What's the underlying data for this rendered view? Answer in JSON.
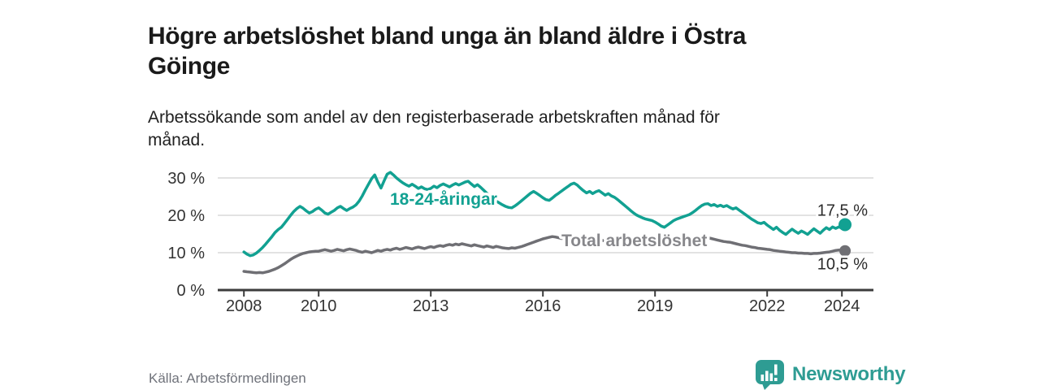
{
  "header": {
    "title": "Högre arbetslöshet bland unga än bland äldre i Östra\nGöinge",
    "subtitle": "Arbetssökande som andel av den registerbaserade arbetskraften månad för\nmånad."
  },
  "footer": {
    "source": "Källa: Arbetsförmedlingen",
    "brand": "Newsworthy"
  },
  "colors": {
    "accent_teal": "#12a192",
    "series_gray": "#6f6f74",
    "gray_label": "#87878b",
    "grid": "#d8d8d8",
    "axis": "#3c3c3c",
    "tick_text": "#333333",
    "value_label_text": "#2b2b2b",
    "logo_teal": "#2e9c93"
  },
  "chart_data": {
    "type": "line",
    "title": "Högre arbetslöshet bland unga än bland äldre i Östra Göinge",
    "subtitle": "Arbetssökande som andel av den registerbaserade arbetskraften månad för månad.",
    "xlabel": "",
    "ylabel": "",
    "x_unit": "year",
    "x_start": 2008.0,
    "x_step": 0.083333,
    "xlim": [
      2007.3,
      2024.85
    ],
    "ylim": [
      0,
      32
    ],
    "grid": "horizontal",
    "legend_position": "inline-labels",
    "x_ticks": [
      {
        "year": 2008,
        "label": "2008"
      },
      {
        "year": 2010,
        "label": "2010"
      },
      {
        "year": 2013,
        "label": "2013"
      },
      {
        "year": 2016,
        "label": "2016"
      },
      {
        "year": 2019,
        "label": "2019"
      },
      {
        "year": 2022,
        "label": "2022"
      },
      {
        "year": 2024,
        "label": "2024"
      }
    ],
    "y_ticks": [
      {
        "v": 0,
        "label": "0 %"
      },
      {
        "v": 10,
        "label": "10 %"
      },
      {
        "v": 20,
        "label": "20 %"
      },
      {
        "v": 30,
        "label": "30 %"
      }
    ],
    "series": [
      {
        "name": "18-24-åringar",
        "color": "#12a192",
        "label_color": "#12a192",
        "end_label": "17,5 %",
        "end_value": 17.5,
        "values": [
          10.2,
          9.6,
          9.2,
          9.4,
          9.9,
          10.6,
          11.4,
          12.3,
          13.3,
          14.3,
          15.4,
          16.2,
          16.8,
          17.8,
          18.9,
          20,
          21,
          21.8,
          22.4,
          21.9,
          21.2,
          20.6,
          21,
          21.6,
          22,
          21.4,
          20.6,
          20.3,
          20.8,
          21.3,
          22,
          22.4,
          21.8,
          21.3,
          21.8,
          22.2,
          22.8,
          23.8,
          25.2,
          26.8,
          28.3,
          29.8,
          30.8,
          28.9,
          27.3,
          29.2,
          31,
          31.5,
          30.8,
          30,
          29.3,
          28.7,
          28.2,
          27.8,
          28.3,
          27.8,
          27.2,
          27.6,
          27.1,
          26.9,
          27.2,
          27.8,
          27.4,
          28,
          28.4,
          28,
          27.6,
          28.1,
          28.5,
          28.1,
          28.5,
          28.9,
          29.1,
          28.4,
          27.7,
          28.2,
          27.5,
          26.7,
          25.9,
          25.1,
          24.4,
          23.8,
          23.3,
          22.8,
          22.4,
          22.1,
          22,
          22.5,
          23.1,
          23.8,
          24.5,
          25.2,
          25.9,
          26.4,
          25.9,
          25.3,
          24.7,
          24.2,
          24,
          24.6,
          25.3,
          25.9,
          26.5,
          27.1,
          27.7,
          28.3,
          28.6,
          28.1,
          27.3,
          26.6,
          26,
          26.4,
          25.8,
          26.3,
          26.6,
          26,
          25.4,
          25.8,
          25.2,
          24.8,
          24.2,
          23.5,
          22.8,
          22.1,
          21.4,
          20.7,
          20.1,
          19.7,
          19.3,
          19,
          18.8,
          18.6,
          18.2,
          17.7,
          17.1,
          16.8,
          17.4,
          18,
          18.6,
          19,
          19.3,
          19.6,
          19.9,
          20.2,
          20.7,
          21.3,
          22,
          22.6,
          23,
          23.1,
          22.6,
          22.9,
          22.4,
          22.7,
          22.3,
          22.6,
          22.1,
          21.7,
          22,
          21.4,
          20.8,
          20.2,
          19.6,
          19,
          18.5,
          18,
          17.8,
          18.1,
          17.4,
          16.8,
          16.2,
          16.8,
          16,
          15.4,
          14.9,
          15.6,
          16.3,
          15.7,
          15.2,
          15.8,
          15.4,
          14.9,
          15.7,
          16.4,
          15.8,
          15.2,
          16,
          16.7,
          16.2,
          16.9,
          16.5,
          16.9,
          16.6,
          17.5
        ]
      },
      {
        "name": "Total arbetslöshet",
        "color": "#6f6f74",
        "label_color": "#87878b",
        "end_label": "10,5 %",
        "end_value": 10.5,
        "values": [
          5,
          4.9,
          4.8,
          4.7,
          4.6,
          4.7,
          4.6,
          4.8,
          5,
          5.3,
          5.6,
          6,
          6.5,
          7,
          7.6,
          8.2,
          8.7,
          9.1,
          9.5,
          9.8,
          10,
          10.2,
          10.3,
          10.4,
          10.4,
          10.6,
          10.8,
          10.6,
          10.4,
          10.6,
          10.9,
          10.7,
          10.5,
          10.8,
          11,
          10.8,
          10.6,
          10.3,
          10.1,
          10.4,
          10.2,
          10,
          10.3,
          10.6,
          10.4,
          10.7,
          10.9,
          10.7,
          11,
          11.2,
          10.9,
          11.1,
          11.4,
          11.2,
          11,
          11.3,
          11.5,
          11.3,
          11.1,
          11.4,
          11.6,
          11.4,
          11.7,
          11.9,
          11.7,
          12,
          12.2,
          12,
          12.3,
          12.1,
          12.4,
          12.2,
          12,
          11.8,
          12.1,
          11.9,
          11.7,
          11.5,
          11.8,
          11.6,
          11.4,
          11.7,
          11.5,
          11.3,
          11.2,
          11.1,
          11.3,
          11.2,
          11.4,
          11.6,
          11.9,
          12.2,
          12.5,
          12.8,
          13.1,
          13.4,
          13.7,
          13.9,
          14.1,
          14.3,
          14.2,
          14,
          13.8,
          13.9,
          13.7,
          13.8,
          13.6,
          13.7,
          13.5,
          13.6,
          13.4,
          13.5,
          13.3,
          13.4,
          13.2,
          13.3,
          13.1,
          13.2,
          13,
          13.1,
          13,
          12.9,
          13,
          12.8,
          12.9,
          12.7,
          12.8,
          12.6,
          12.7,
          12.5,
          12.6,
          12.4,
          12.5,
          12.3,
          12.4,
          12.2,
          12.3,
          12.4,
          12.6,
          12.7,
          12.9,
          13,
          13.2,
          13.3,
          13.5,
          13.7,
          13.9,
          14.1,
          14.2,
          14,
          13.8,
          13.6,
          13.4,
          13.2,
          13,
          12.9,
          12.8,
          12.6,
          12.4,
          12.2,
          12,
          11.9,
          11.7,
          11.5,
          11.4,
          11.2,
          11.1,
          11,
          10.9,
          10.8,
          10.6,
          10.5,
          10.4,
          10.3,
          10.2,
          10.1,
          10,
          10,
          9.9,
          9.9,
          9.8,
          9.8,
          9.7,
          9.8,
          9.8,
          9.9,
          10,
          10.1,
          10.2,
          10.4,
          10.6,
          10.7,
          10.6,
          10.5
        ]
      }
    ]
  }
}
